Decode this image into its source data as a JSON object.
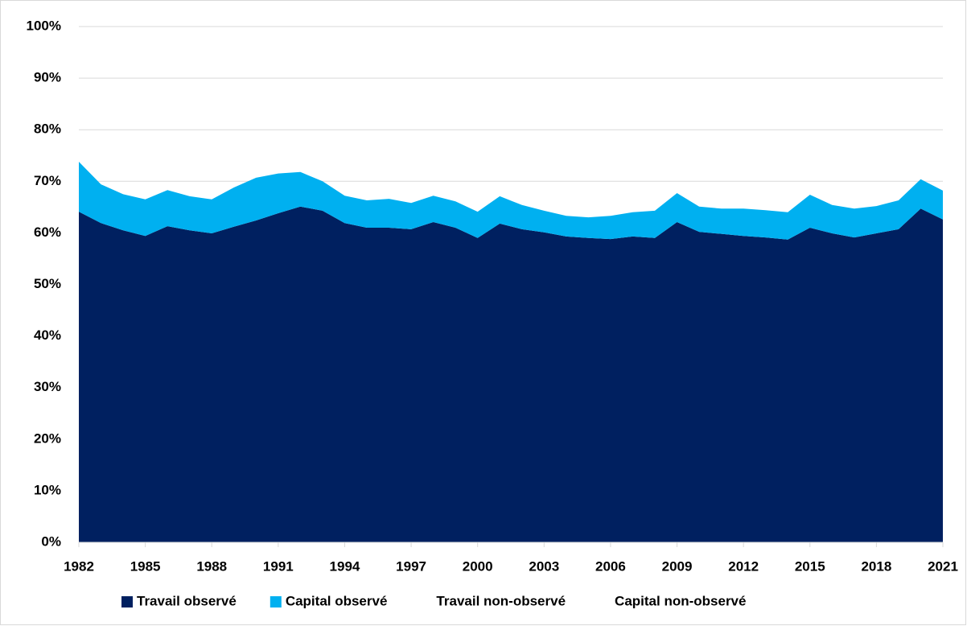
{
  "chart_data": {
    "type": "stacked-area",
    "x": [
      1982,
      1983,
      1984,
      1985,
      1986,
      1987,
      1988,
      1989,
      1990,
      1991,
      1992,
      1993,
      1994,
      1995,
      1996,
      1997,
      1998,
      1999,
      2000,
      2001,
      2002,
      2003,
      2004,
      2005,
      2006,
      2007,
      2008,
      2009,
      2010,
      2011,
      2012,
      2013,
      2014,
      2015,
      2016,
      2017,
      2018,
      2019,
      2020,
      2021
    ],
    "xlim": [
      1982,
      2021
    ],
    "xticks": [
      1982,
      1985,
      1988,
      1991,
      1994,
      1997,
      2000,
      2003,
      2006,
      2009,
      2012,
      2015,
      2018,
      2021
    ],
    "ylim": [
      0,
      100
    ],
    "yticks": [
      {
        "value": 0,
        "label": "0%"
      },
      {
        "value": 10,
        "label": "10%"
      },
      {
        "value": 20,
        "label": "20%"
      },
      {
        "value": 30,
        "label": "30%"
      },
      {
        "value": 40,
        "label": "40%"
      },
      {
        "value": 50,
        "label": "50%"
      },
      {
        "value": 60,
        "label": "60%"
      },
      {
        "value": 70,
        "label": "70%"
      },
      {
        "value": 80,
        "label": "80%"
      },
      {
        "value": 90,
        "label": "90%"
      },
      {
        "value": 100,
        "label": "100%"
      }
    ],
    "grid": true,
    "legend": "bottom",
    "series": [
      {
        "name": "Travail observé",
        "color": "#002060",
        "values": [
          64.1,
          61.9,
          60.5,
          59.4,
          61.3,
          60.5,
          59.9,
          61.2,
          62.4,
          63.8,
          65.1,
          64.3,
          61.9,
          61.0,
          61.0,
          60.7,
          62.1,
          61.0,
          59.0,
          61.8,
          60.7,
          60.1,
          59.3,
          59.0,
          58.8,
          59.3,
          59.0,
          62.1,
          60.2,
          59.8,
          59.4,
          59.1,
          58.7,
          61.0,
          59.9,
          59.1,
          59.9,
          60.7,
          64.7,
          62.6
        ]
      },
      {
        "name": "Capital observé",
        "color": "#00b0f0",
        "values": [
          9.7,
          7.5,
          7.0,
          7.1,
          7.0,
          6.6,
          6.6,
          7.6,
          8.3,
          7.7,
          6.7,
          5.7,
          5.3,
          5.3,
          5.6,
          5.1,
          5.1,
          5.1,
          5.1,
          5.3,
          4.7,
          4.2,
          4.0,
          4.0,
          4.5,
          4.7,
          5.3,
          5.6,
          4.9,
          4.9,
          5.3,
          5.3,
          5.3,
          6.4,
          5.5,
          5.6,
          5.3,
          5.6,
          5.7,
          5.6
        ]
      },
      {
        "name": "Travail non-observé",
        "color": "#ffffff",
        "values": [
          null,
          null,
          null,
          null,
          null,
          null,
          null,
          null,
          null,
          null,
          null,
          null,
          null,
          null,
          null,
          null,
          null,
          null,
          null,
          null,
          null,
          null,
          null,
          null,
          null,
          null,
          null,
          null,
          null,
          null,
          null,
          null,
          null,
          null,
          null,
          null,
          null,
          null,
          null,
          null
        ]
      },
      {
        "name": "Capital non-observé",
        "color": "#ffffff",
        "values": [
          null,
          null,
          null,
          null,
          null,
          null,
          null,
          null,
          null,
          null,
          null,
          null,
          null,
          null,
          null,
          null,
          null,
          null,
          null,
          null,
          null,
          null,
          null,
          null,
          null,
          null,
          null,
          null,
          null,
          null,
          null,
          null,
          null,
          null,
          null,
          null,
          null,
          null,
          null,
          null
        ]
      }
    ]
  }
}
